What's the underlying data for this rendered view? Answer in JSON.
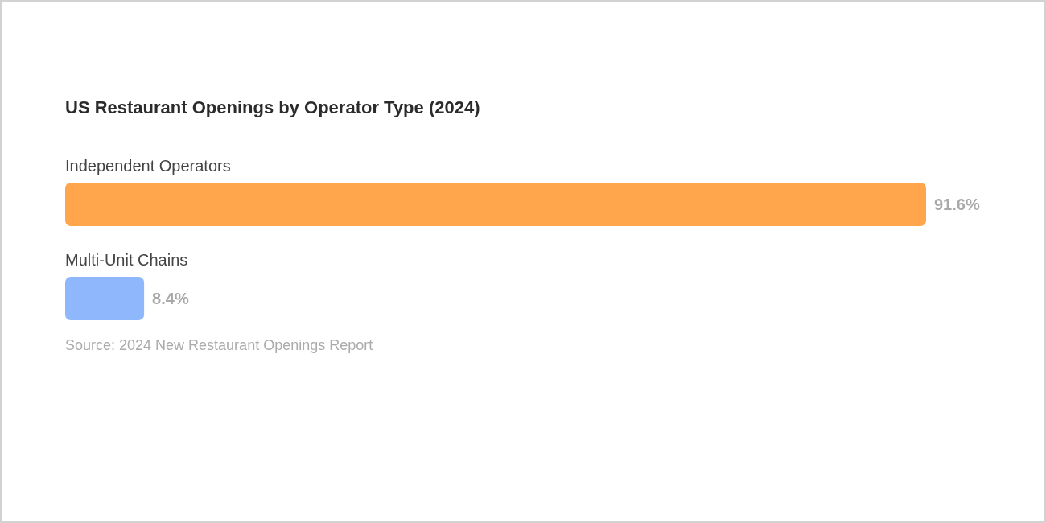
{
  "chart_data": {
    "type": "bar",
    "orientation": "horizontal",
    "title": "US Restaurant Openings by Operator Type (2024)",
    "categories": [
      "Independent Operators",
      "Multi-Unit Chains"
    ],
    "values": [
      91.6,
      8.4
    ],
    "colors": [
      "#ffa54c",
      "#8fb7fc"
    ],
    "value_labels": [
      "91.6%",
      "8.4%"
    ],
    "annotations": [
      "Source: 2024 New Restaurant Openings Report"
    ]
  }
}
